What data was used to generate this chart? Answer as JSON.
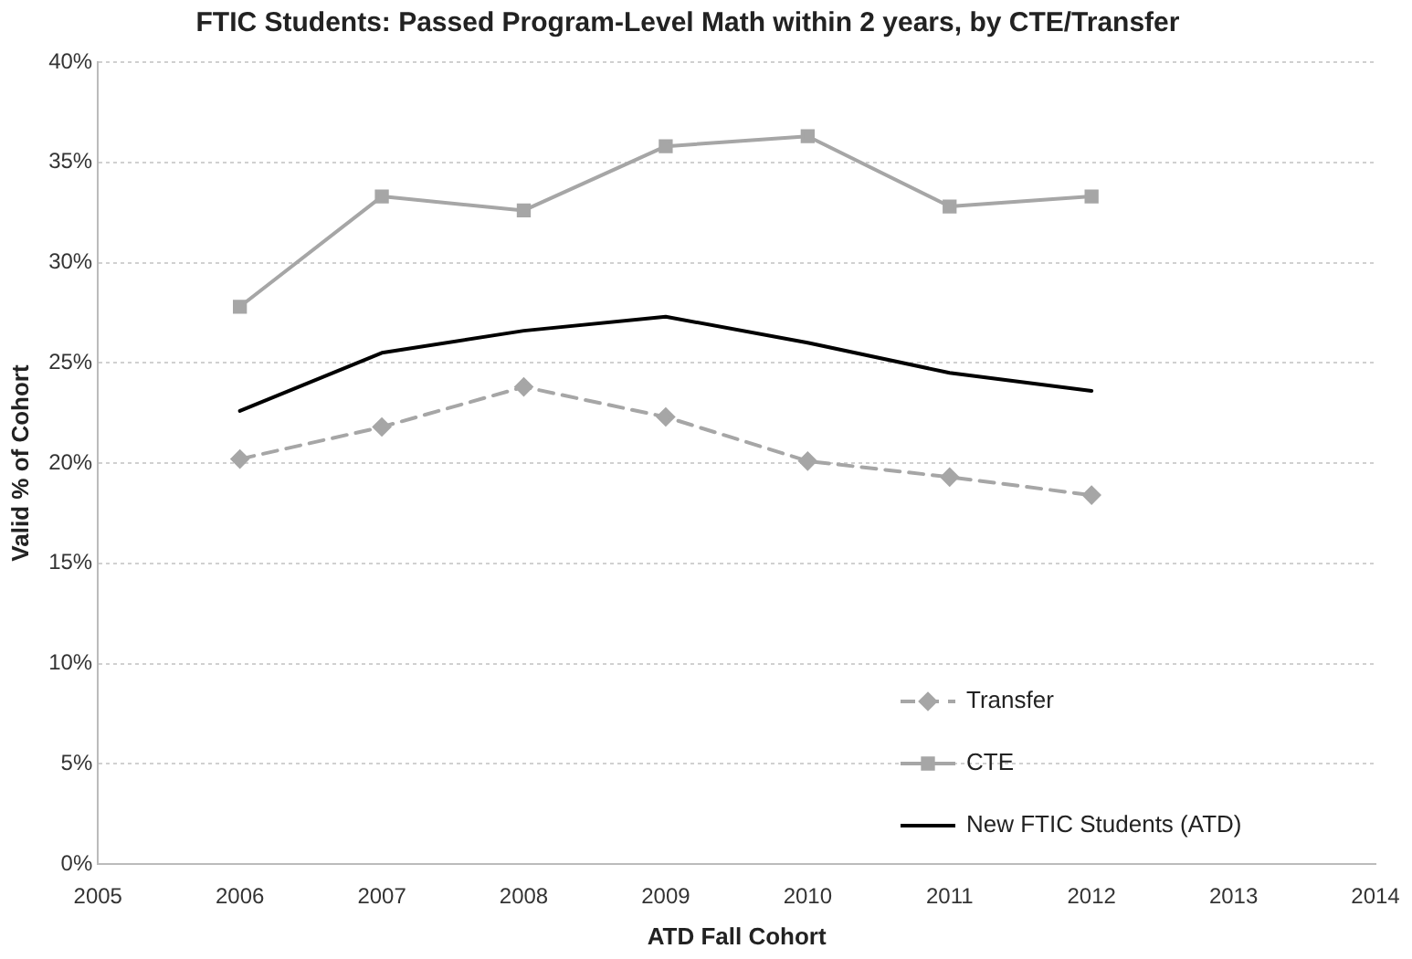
{
  "chart_data": {
    "type": "line",
    "title": "FTIC Students: Passed Program-Level Math within 2 years, by CTE/Transfer",
    "xlabel": "ATD Fall Cohort",
    "ylabel": "Valid % of Cohort",
    "x": [
      2006,
      2007,
      2008,
      2009,
      2010,
      2011,
      2012
    ],
    "xlim": [
      2005,
      2014
    ],
    "xticks": [
      2005,
      2006,
      2007,
      2008,
      2009,
      2010,
      2011,
      2012,
      2013,
      2014
    ],
    "ylim": [
      0,
      40
    ],
    "yticks": [
      {
        "value": 0,
        "label": "0%"
      },
      {
        "value": 5,
        "label": "5%"
      },
      {
        "value": 10,
        "label": "10%"
      },
      {
        "value": 15,
        "label": "15%"
      },
      {
        "value": 20,
        "label": "20%"
      },
      {
        "value": 25,
        "label": "25%"
      },
      {
        "value": 30,
        "label": "30%"
      },
      {
        "value": 35,
        "label": "35%"
      },
      {
        "value": 40,
        "label": "40%"
      }
    ],
    "grid": "y",
    "legend": "bottom right",
    "series": [
      {
        "name": "Transfer",
        "color": "#a6a6a6",
        "marker": "diamond",
        "line_style": "dashed",
        "values": [
          20.2,
          21.8,
          23.8,
          22.3,
          20.1,
          19.3,
          18.4
        ]
      },
      {
        "name": "CTE",
        "color": "#a6a6a6",
        "marker": "square",
        "line_style": "solid",
        "values": [
          27.8,
          33.3,
          32.6,
          35.8,
          36.3,
          32.8,
          33.3
        ]
      },
      {
        "name": "New FTIC Students (ATD)",
        "color": "#000000",
        "marker": "none",
        "line_style": "solid",
        "values": [
          22.6,
          25.5,
          26.6,
          27.3,
          26.0,
          24.5,
          23.6
        ]
      }
    ]
  }
}
